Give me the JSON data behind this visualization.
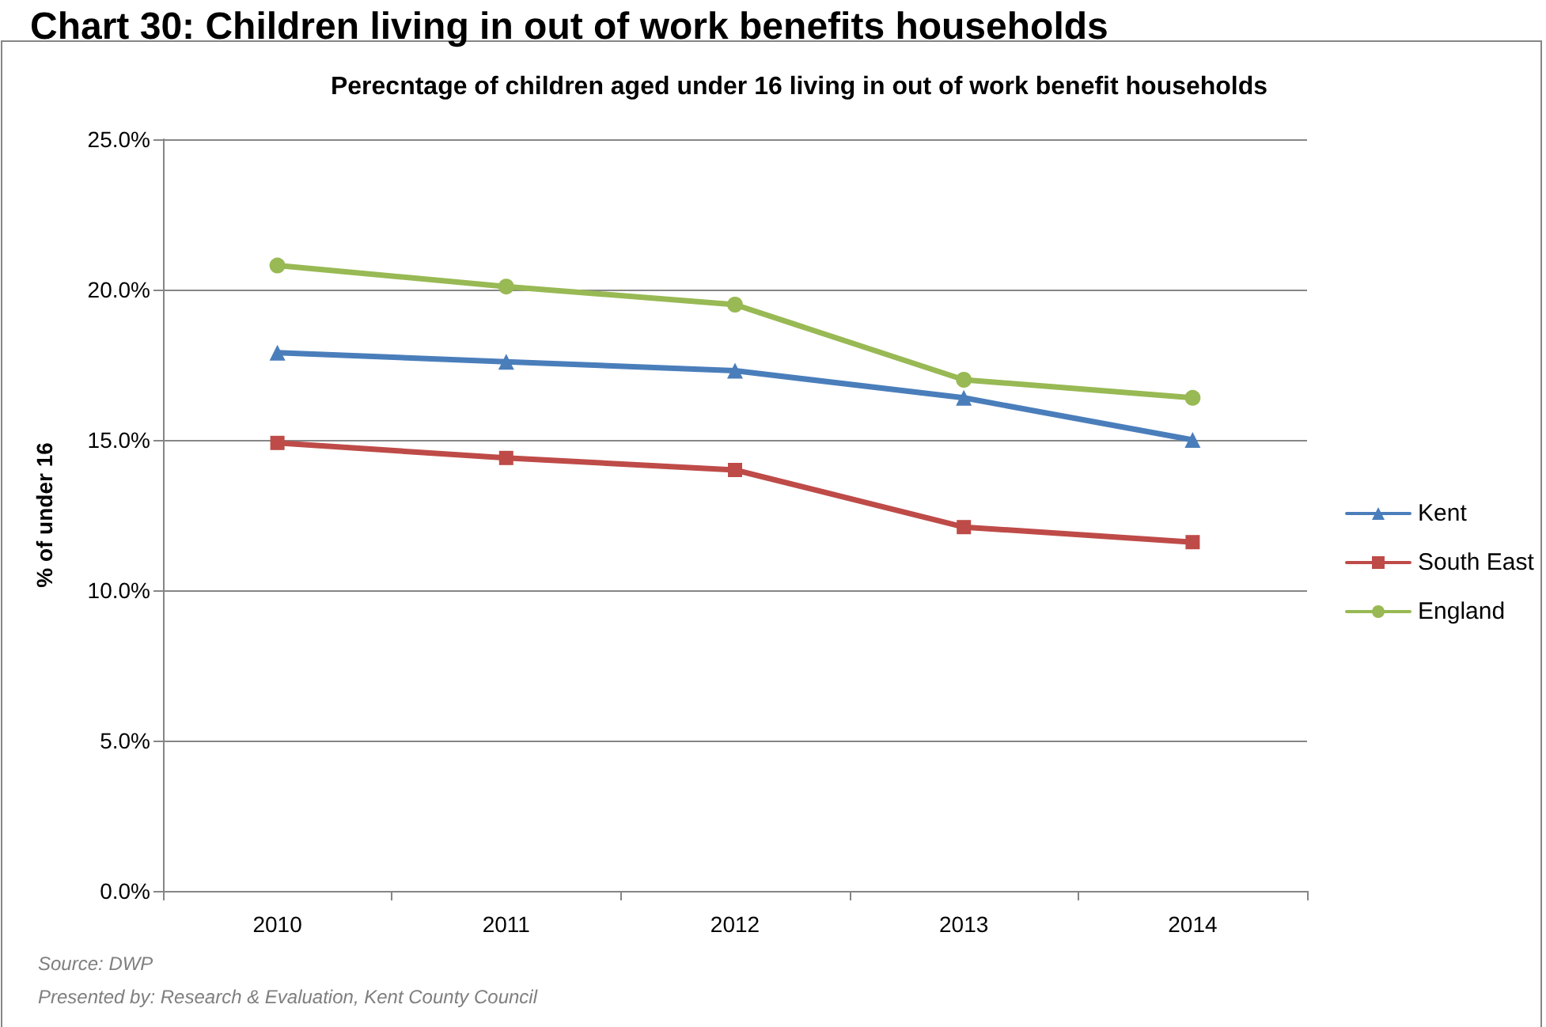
{
  "chart_data": {
    "type": "line",
    "title": "Chart 30: Children living in out of work benefits households",
    "subtitle": "Perecntage of children aged under 16 living in out of work benefit households",
    "ylabel": "% of under 16",
    "categories": [
      "2010",
      "2011",
      "2012",
      "2013",
      "2014"
    ],
    "series": [
      {
        "name": "Kent",
        "color": "#4a7ebb",
        "marker": "triangle",
        "values": [
          17.9,
          17.6,
          17.3,
          16.4,
          15.0
        ]
      },
      {
        "name": "South East",
        "color": "#be4b48",
        "marker": "square",
        "values": [
          14.9,
          14.4,
          14.0,
          12.1,
          11.6
        ]
      },
      {
        "name": "England",
        "color": "#98b954",
        "marker": "circle",
        "values": [
          20.8,
          20.1,
          19.5,
          17.0,
          16.4
        ]
      }
    ],
    "ylim": [
      0,
      25
    ],
    "yticks": [
      {
        "value": 0,
        "label": "0.0%"
      },
      {
        "value": 5,
        "label": "5.0%"
      },
      {
        "value": 10,
        "label": "10.0%"
      },
      {
        "value": 15,
        "label": "15.0%"
      },
      {
        "value": 20,
        "label": "20.0%"
      },
      {
        "value": 25,
        "label": "25.0%"
      }
    ],
    "grid": "y",
    "legend": "right",
    "line_style": "solid",
    "annotations": [
      "Source: DWP",
      "Presented by: Research & Evaluation, Kent County Council"
    ]
  }
}
